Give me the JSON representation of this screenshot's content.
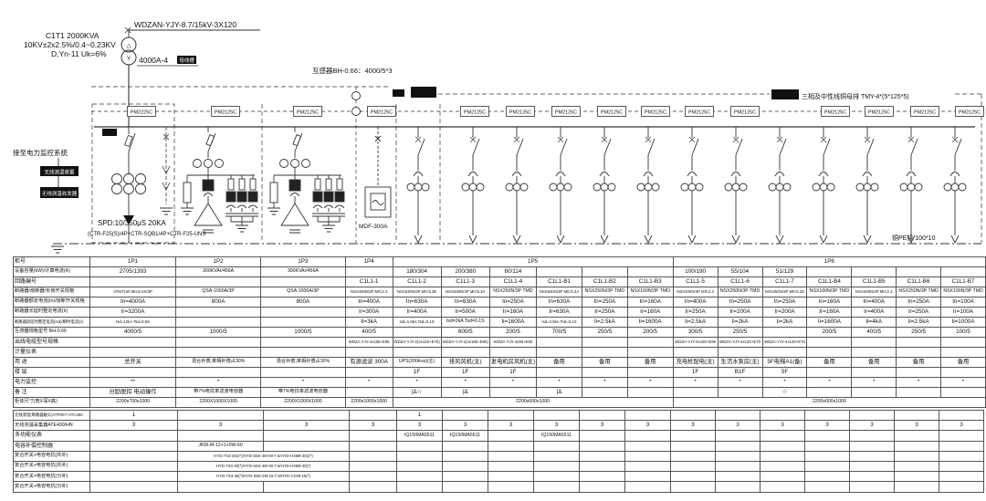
{
  "diagram": {
    "tx_title": "C1T1 2000KVA",
    "tx_tap": "10KV±2x2.5%/0.4~0.23KV",
    "tx_vector": "D,Yn-11 Uk=6%",
    "hv_cable": "WDZAN-YJY-8.7/15kV-3X120",
    "busway": "4000A-4",
    "busway_tag": "母线槽",
    "main_ct": "互感器BH-0.66：4000/5*3",
    "busbar": "三相及中性线铜母排 TMY-4*(5*125*5)",
    "scada": "接至电力监控系统",
    "temp_box1": "无线测温装置",
    "temp_box2": "无线测温收发器",
    "spd1": "SPD:10/350μS 20KA",
    "spd2": "(CTR-F25(S)/4P+CTR-SQB1/4P+CTR-F25-UNS",
    "filter": "MDF-300A",
    "pe": "铜PE排 100*10",
    "delta": "△",
    "wye": "Y",
    "meters": [
      "PM2225C",
      "PM2125C",
      "PM2125C",
      "PM2125C",
      "PM2125C",
      "PM2125C",
      "PM2125C",
      "PM2125C",
      "PM2125C",
      "PM2125C",
      "PM2125C",
      "PM2125C",
      "PM2125C",
      "PM2125C",
      "PM2125C"
    ]
  },
  "main_table": {
    "rows": [
      {
        "label": "柜号",
        "cells": [
          "1P1",
          "1P2",
          "1P3",
          "1P4",
          {
            "t": "1P5",
            "s": 6
          },
          {
            "t": "1P6",
            "s": 7
          }
        ]
      },
      {
        "label": "设备容量(kW)/计算电流(A)",
        "cells": [
          "2705/1393",
          "300KVAr/456A",
          "300KVAr/456A",
          "",
          "180/304",
          "200/380",
          "60/114",
          "",
          "",
          "",
          "100/190",
          "55/104",
          "51/129",
          "",
          "",
          "",
          ""
        ]
      },
      {
        "label": "回路编号",
        "cells": [
          "",
          "",
          "",
          "C1L1-1",
          "C1L1-2",
          "C1L1-3",
          "C1L1-4",
          "C1L1-B1",
          "C1L1-B2",
          "C1L1-B3",
          "C1L1-5",
          "C1L1-6",
          "C1L1-7",
          "C1L1-B4",
          "C1L1-B5",
          "C1L1-B6",
          "C1L1-B7"
        ]
      },
      {
        "label": "断路器/熔断器/负荷开关规格",
        "cells": [
          "ATMTz40 MIC6.0X/3P",
          "QSA-1000A/3P",
          "QSA-1000A/3P",
          "NSX400N/3P MIC2.3",
          "NSX630N/3P MIC5.3E",
          "NSX630N/3P MIC5.3A",
          "NSX250N/3P TMD",
          "NSX630N/3P MIC5.3A",
          "NSX250N/3P TMD",
          "NSX160N/3P TMD",
          "NSX400N/3P MIC2.3",
          "NSX250N/3P TMD",
          "NSX250N/3P MIC5.2E",
          "NSX160N/3P TMD",
          "NSX400N/3P MIC2.3",
          "NSX250N/3P TMD",
          "NSX100N/3P TMD"
        ]
      },
      {
        "label": "断路器额定电流(In)/熔断开关规格",
        "cells": [
          "In=4000A",
          "800A",
          "800A",
          "In=400A",
          "In=630A",
          "In=630A",
          "In=250A",
          "In=630A",
          "In=250A",
          "In=160A",
          "In=400A",
          "In=250A",
          "In=250A",
          "In=160A",
          "In=400A",
          "In=250A",
          "In=100A"
        ]
      },
      {
        "label": "断路器长延时整定电流(Ir)",
        "cells": [
          "Ir=3200A",
          "",
          "",
          "Ir=300A",
          "Ir=400A",
          "Ir=500A",
          "Ir=160A",
          "Ir=630A",
          "Ir=250A",
          "Ir=160A",
          "Ir=250A",
          "Ir=200A",
          "Ir=200A",
          "Ir=160A",
          "Ir=400A",
          "Ir=250A",
          "Ir=100A"
        ]
      },
      {
        "label": "断路器短延时整定电流(Isd)/瞬时电流(Ii)",
        "cells": [
          "Isd=12kA Tsd=0.6S",
          "",
          "",
          "Ii=3kA",
          "Isd=1.6kA Tsd=0.1S",
          "Isd=2kA Tsd=0.1S",
          "Ii=1600A",
          "Isd=2.5kA Tsd=0.1S",
          "Ii=2.5kA",
          "Ii=1600A",
          "Ii=2.5kA",
          "Ii=2kA",
          "Ii=2kA",
          "Ii=1600A",
          "Ii=4kA",
          "Ii=2.5kA",
          "Ii=1000A"
        ]
      },
      {
        "label": "互感器规格型号 BH-0.66",
        "cells": [
          "4000/5",
          "1000/5",
          "1000/5",
          "400/5",
          "",
          "600/5",
          "200/5",
          "700/5",
          "250/5",
          "200/5",
          "300/5",
          "250/5",
          "",
          "200/5",
          "400/5",
          "250/5",
          "100/5"
        ]
      },
      {
        "label": "出线电缆型号规格",
        "cells": [
          "",
          "",
          "",
          "WDZA-YJY-4x185+E95",
          "WDZA-YJY-2(4x120+E70)",
          "WDZA-YJY-2(4x185+E95)",
          "WDZA-YJY-4x95+E50",
          "",
          "",
          "",
          "WDZA-YJY-4x150+E95",
          "WDZA-YJY-4x120+E70",
          "WDZA-YJY-4x120+E70",
          "",
          "",
          "",
          ""
        ]
      },
      {
        "label": "计量仪表",
        "cells": [
          "",
          "",
          "",
          "",
          "",
          "",
          "",
          "",
          "",
          "",
          "",
          "",
          "",
          "",
          "",
          "",
          ""
        ]
      },
      {
        "label": "用 途",
        "cells": [
          "总开关",
          "混合补偿,单相补偿占30%",
          "混合补偿,单相补偿占30%",
          "有源滤波 300A",
          "UPS(200kva)(主)",
          "排风风机(主)",
          "发电机房风机(主)",
          "备用",
          "备用",
          "备用",
          "充电桩配电(主)",
          "生活水泵房(主)",
          "5F电梯A1(备)",
          "备用",
          "备用",
          "备用",
          "备用"
        ]
      },
      {
        "label": "楼 层",
        "cells": [
          "",
          "",
          "",
          "",
          "1F",
          "1F",
          "1F",
          "",
          "",
          "",
          "1F",
          "B1F",
          "5F",
          "",
          "",
          "",
          ""
        ]
      },
      {
        "label": "电力监控",
        "cells": [
          "**",
          "*",
          "*",
          "*",
          "*",
          "*",
          "*",
          "*",
          "*",
          "*",
          "*",
          "*",
          "*",
          "*",
          "*",
          "*",
          "*"
        ]
      },
      {
        "label": "备 注",
        "cells": [
          "分励脱扣 电动操作",
          "带7%电抗率滤波电容器",
          "带7%电抗率滤波电容器",
          "",
          "|Δ☆",
          "|Δ",
          "",
          "|Δ",
          "",
          "",
          "",
          "",
          "☆",
          "",
          "",
          "",
          ""
        ]
      },
      {
        "label": "柜体尺寸(宽X深X高)",
        "cells": [
          "2200x700x1000",
          "2200X1000X1000",
          "2200X1000X1000",
          "2200x1000x1000",
          {
            "t": "2200x600x1000",
            "s": 6
          },
          {
            "t": "2200x600x1000",
            "s": 7
          }
        ]
      }
    ]
  },
  "aux_table": {
    "rows": [
      {
        "label": "无线测温(断路器触头)ATP007+ATC450",
        "cells": [
          "1",
          "",
          "",
          "",
          "1",
          "",
          "",
          "",
          "",
          "",
          "",
          "",
          "",
          "",
          "",
          "",
          ""
        ]
      },
      {
        "label": "无线测温采集器ATE400/HN",
        "cells": [
          "3",
          "3",
          "3",
          "3",
          "3",
          "3",
          "3",
          "3",
          "3",
          "3",
          "3",
          "3",
          "3",
          "3",
          "3",
          "3",
          "3"
        ]
      },
      {
        "label": "多功能仪表",
        "cells": [
          "",
          "",
          "",
          "",
          "IQ150MA5511",
          "IQ150MA5511",
          "",
          "IQ150MA5511",
          "",
          "",
          "",
          "",
          "",
          "",
          "",
          "",
          ""
        ]
      },
      {
        "label": "电容补偿控制器",
        "cells": [
          "",
          "JKW-M-12+1+0W-60",
          "",
          "",
          "",
          "",
          "",
          "",
          "",
          "",
          "",
          "",
          "",
          "",
          "",
          "",
          ""
        ]
      },
      {
        "label": "复合开关+电容电抗(共补)",
        "cells": [
          "",
          {
            "t": "HYD-7S3-40(2*)/HYD-S6S-4M-40-7.5/HYD-H4M8-30(2*)",
            "s": 2
          },
          "",
          "",
          "",
          "",
          "",
          "",
          "",
          "",
          "",
          "",
          "",
          "",
          "",
          ""
        ]
      },
      {
        "label": "复合开关+电容电抗(共补)",
        "cells": [
          "",
          {
            "t": "HYD-7S3-30(*)/HYD-S6S-4M-30-7.5/HYD-H4M8-30(*)",
            "s": 2
          },
          "",
          "",
          "",
          "",
          "",
          "",
          "",
          "",
          "",
          "",
          "",
          "",
          "",
          ""
        ]
      },
      {
        "label": "复合开关+电容电抗(分补)",
        "cells": [
          "",
          {
            "t": "HYD-7S3-45(*)/HYD-S6S-2M-15-7.5/HYD-C2S8-15(*)",
            "s": 2
          },
          "",
          "",
          "",
          "",
          "",
          "",
          "",
          "",
          "",
          "",
          "",
          "",
          "",
          ""
        ]
      },
      {
        "label": "复合开关+电容电抗(分补)",
        "cells": [
          "",
          "",
          "",
          "",
          "",
          "",
          "",
          "",
          "",
          "",
          "",
          "",
          "",
          "",
          "",
          "",
          ""
        ]
      }
    ]
  }
}
